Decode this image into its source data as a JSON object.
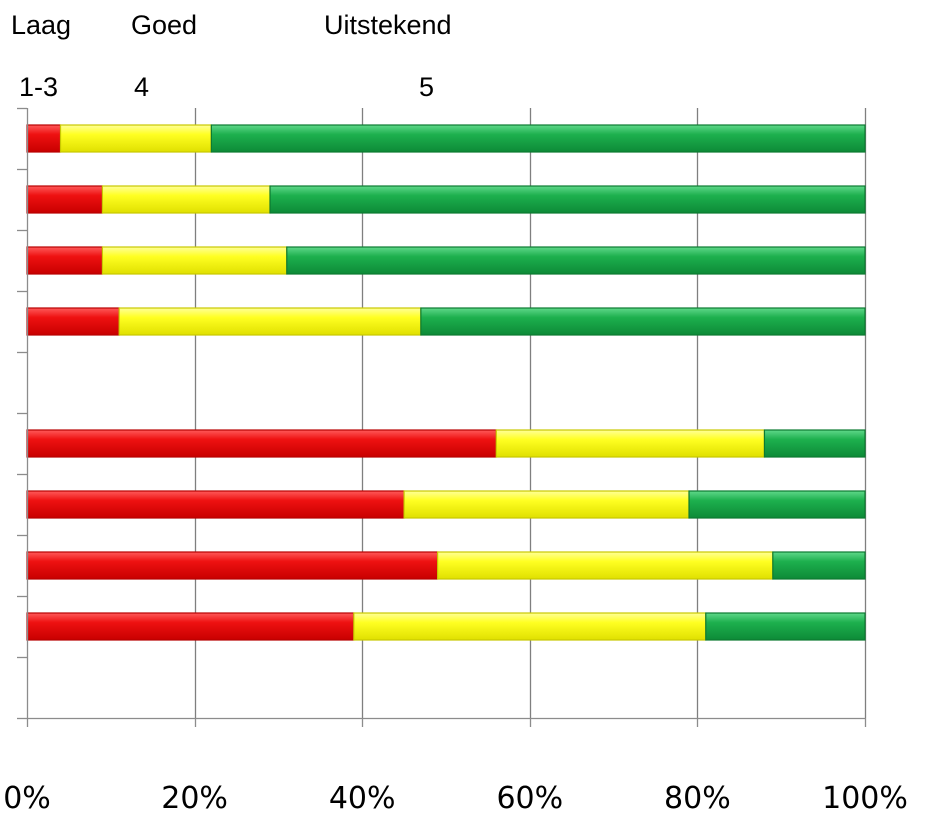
{
  "header": {
    "categories": [
      "Laag",
      "Goed",
      "Uitstekend"
    ],
    "scores": [
      "1-3",
      "4",
      "5"
    ]
  },
  "colors": {
    "low": "#ee1111",
    "low_dark": "#b80000",
    "mid": "#ffff22",
    "mid_dark": "#c9c900",
    "high": "#1db04e",
    "high_dark": "#0c7a31",
    "grid": "#7f7f7f",
    "axis": "#8c8c8c"
  },
  "chart_data": {
    "type": "bar",
    "orientation": "horizontal",
    "stacked": "percent",
    "xlim": [
      0,
      100
    ],
    "x_ticks": [
      "0%",
      "20%",
      "40%",
      "60%",
      "80%",
      "100%"
    ],
    "grid": true,
    "row_slots": 10,
    "rows": [
      {
        "slot": 0,
        "values": [
          4,
          18,
          78
        ]
      },
      {
        "slot": 1,
        "values": [
          9,
          20,
          71
        ]
      },
      {
        "slot": 2,
        "values": [
          9,
          22,
          69
        ]
      },
      {
        "slot": 3,
        "values": [
          11,
          36,
          53
        ]
      },
      {
        "slot": 5,
        "values": [
          56,
          32,
          12
        ]
      },
      {
        "slot": 6,
        "values": [
          45,
          34,
          21
        ]
      },
      {
        "slot": 7,
        "values": [
          49,
          40,
          11
        ]
      },
      {
        "slot": 8,
        "values": [
          39,
          42,
          19
        ]
      }
    ],
    "series": [
      {
        "name": "Laag 1-3",
        "color_key": "low"
      },
      {
        "name": "Goed 4",
        "color_key": "mid"
      },
      {
        "name": "Uitstekend 5",
        "color_key": "high"
      }
    ]
  }
}
